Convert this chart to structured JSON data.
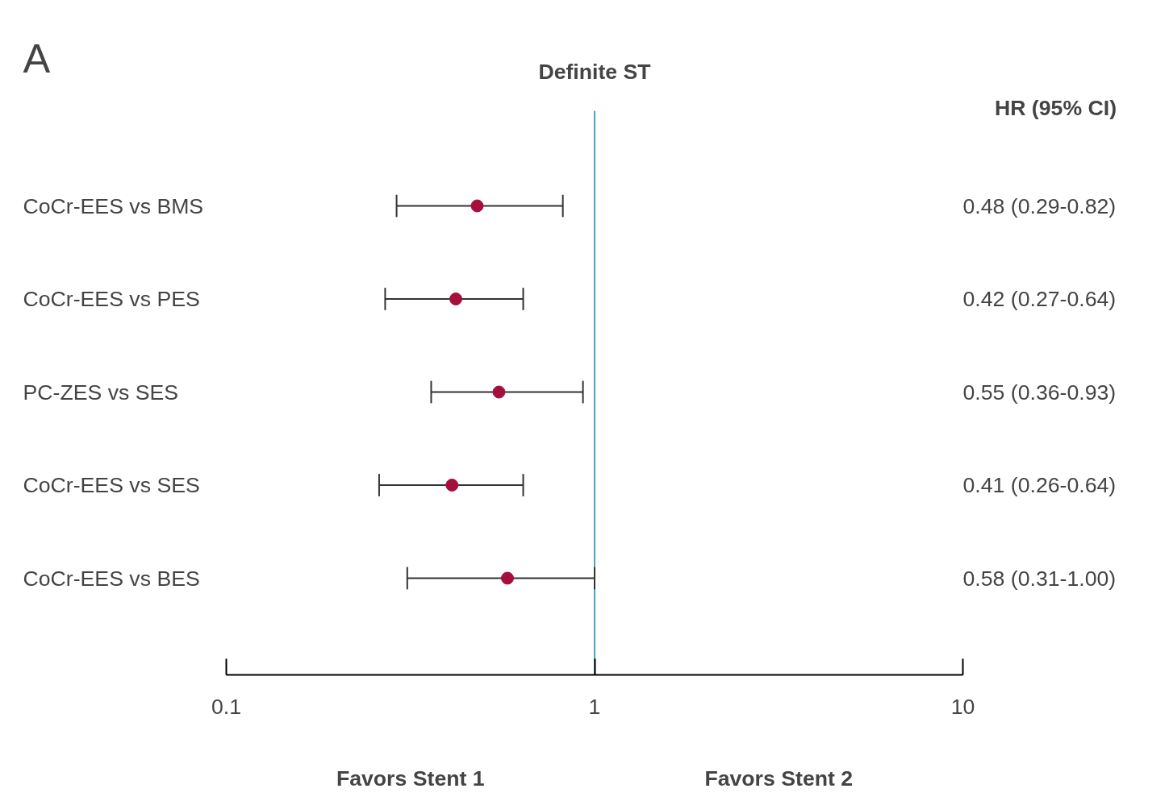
{
  "chart_data": {
    "type": "scatter",
    "orientation": "horizontal",
    "title": "Definite ST",
    "categories": [
      "CoCr-EES vs BMS",
      "CoCr-EES vs PES",
      "PC-ZES vs SES",
      "CoCr-EES vs SES",
      "CoCr-EES vs BES"
    ],
    "values": [
      0.48,
      0.42,
      0.55,
      0.41,
      0.58
    ],
    "errors": [
      [
        0.29,
        0.82
      ],
      [
        0.27,
        0.64
      ],
      [
        0.36,
        0.93
      ],
      [
        0.26,
        0.64
      ],
      [
        0.31,
        1.0
      ]
    ],
    "value_labels": [
      "0.48 (0.29-0.82)",
      "0.42 (0.27-0.64)",
      "0.55 (0.36-0.93)",
      "0.41 (0.26-0.64)",
      "0.58 (0.31-1.00)"
    ],
    "color": "#a50f3c",
    "marker": "circle",
    "log": "x",
    "xlim": [
      0.1,
      10
    ],
    "xticks": [
      0.1,
      1,
      10
    ],
    "ref_lines": [
      {
        "axis": "x",
        "value": 1,
        "color": "#4aa3c0"
      }
    ],
    "annotations": [
      "A",
      "HR (95% CI)",
      "Favors Stent 1",
      "Favors Stent 2"
    ],
    "grid": false,
    "legend": false
  }
}
